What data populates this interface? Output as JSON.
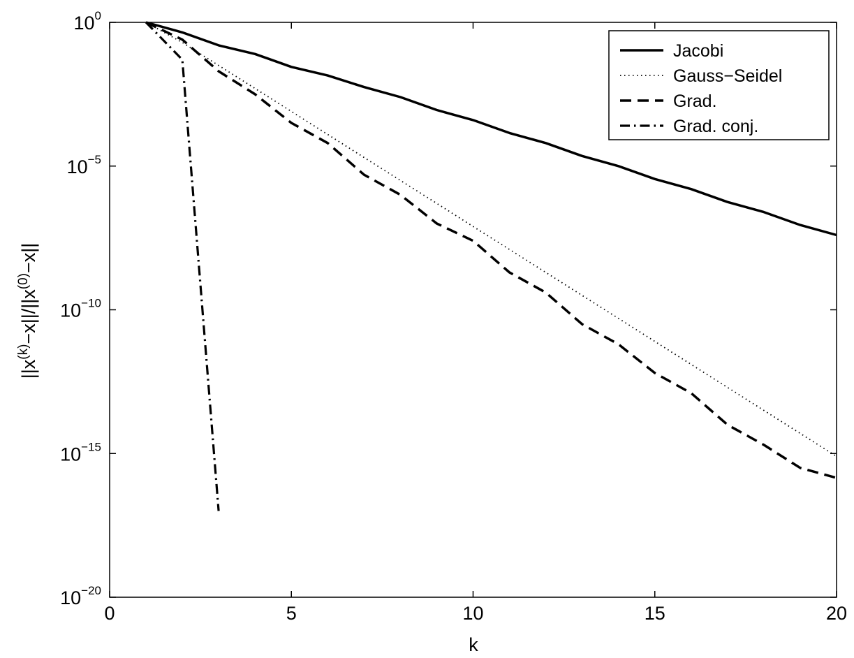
{
  "chart_data": {
    "type": "line",
    "title": "",
    "xlabel": "k",
    "ylabel": "||x^(k)-x||/||x^(0)-x||",
    "yscale": "log",
    "xlim": [
      0,
      20
    ],
    "ylim_exponent": [
      -20,
      0
    ],
    "x_ticks": [
      0,
      5,
      10,
      15,
      20
    ],
    "y_ticks": [
      {
        "base": "10",
        "exp": "0",
        "value_exp": 0
      },
      {
        "base": "10",
        "exp": "−5",
        "value_exp": -5
      },
      {
        "base": "10",
        "exp": "−10",
        "value_exp": -10
      },
      {
        "base": "10",
        "exp": "−15",
        "value_exp": -15
      },
      {
        "base": "10",
        "exp": "−20",
        "value_exp": -20
      }
    ],
    "grid": false,
    "legend_position": "top-right",
    "series": [
      {
        "name": "Jacobi",
        "style": "solid",
        "x": [
          1,
          2,
          3,
          4,
          5,
          6,
          7,
          8,
          9,
          10,
          11,
          12,
          13,
          14,
          15,
          16,
          17,
          18,
          19,
          20
        ],
        "log10_y": [
          0,
          -0.35,
          -0.8,
          -1.1,
          -1.55,
          -1.85,
          -2.25,
          -2.6,
          -3.05,
          -3.4,
          -3.85,
          -4.2,
          -4.65,
          -5.0,
          -5.45,
          -5.8,
          -6.25,
          -6.6,
          -7.05,
          -7.4
        ]
      },
      {
        "name": "Gauss−Seidel",
        "style": "dotted",
        "x": [
          1,
          2,
          3,
          4,
          5,
          6,
          7,
          8,
          9,
          10,
          11,
          12,
          13,
          14,
          15,
          16,
          17,
          18,
          19,
          20
        ],
        "log10_y": [
          0,
          -0.7,
          -1.5,
          -2.3,
          -3.1,
          -3.9,
          -4.7,
          -5.5,
          -6.3,
          -7.1,
          -7.9,
          -8.7,
          -9.5,
          -10.3,
          -11.1,
          -11.9,
          -12.7,
          -13.5,
          -14.3,
          -15.1
        ]
      },
      {
        "name": "Grad.",
        "style": "dashed",
        "x": [
          1,
          2,
          3,
          4,
          5,
          6,
          7,
          8,
          9,
          10,
          11,
          12,
          13,
          14,
          15,
          16,
          17,
          18,
          19,
          20
        ],
        "log10_y": [
          0,
          -0.6,
          -1.7,
          -2.5,
          -3.5,
          -4.2,
          -5.3,
          -6.0,
          -7.0,
          -7.6,
          -8.7,
          -9.4,
          -10.5,
          -11.2,
          -12.2,
          -12.9,
          -14.0,
          -14.7,
          -15.5,
          -15.85
        ]
      },
      {
        "name": "Grad. conj.",
        "style": "dashdot",
        "x": [
          1,
          2,
          3
        ],
        "log10_y": [
          0,
          -1.3,
          -17.0
        ]
      }
    ]
  }
}
